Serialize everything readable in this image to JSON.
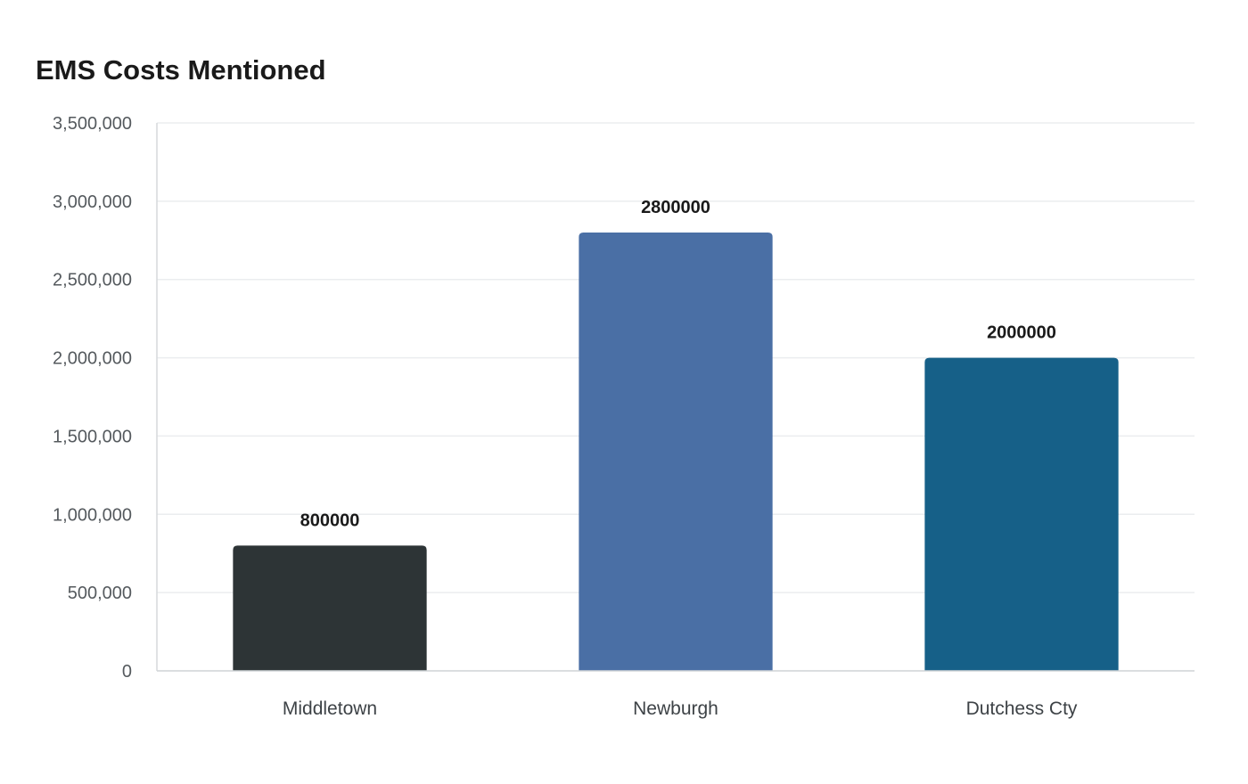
{
  "chart_data": {
    "type": "bar",
    "title": "EMS Costs Mentioned",
    "xlabel": "",
    "ylabel": "",
    "categories": [
      "Middletown",
      "Newburgh",
      "Dutchess Cty"
    ],
    "values": [
      800000,
      2800000,
      2000000
    ],
    "data_labels": [
      "800000",
      "2800000",
      "2000000"
    ],
    "colors": [
      "#2d3436",
      "#4a6fa5",
      "#166088"
    ],
    "ylim": [
      0,
      3500000
    ],
    "y_ticks": [
      0,
      500000,
      1000000,
      1500000,
      2000000,
      2500000,
      3000000,
      3500000
    ],
    "y_tick_labels": [
      "0",
      "500,000",
      "1,000,000",
      "1,500,000",
      "2,000,000",
      "2,500,000",
      "3,000,000",
      "3,500,000"
    ],
    "grid": true,
    "legend": "none"
  }
}
